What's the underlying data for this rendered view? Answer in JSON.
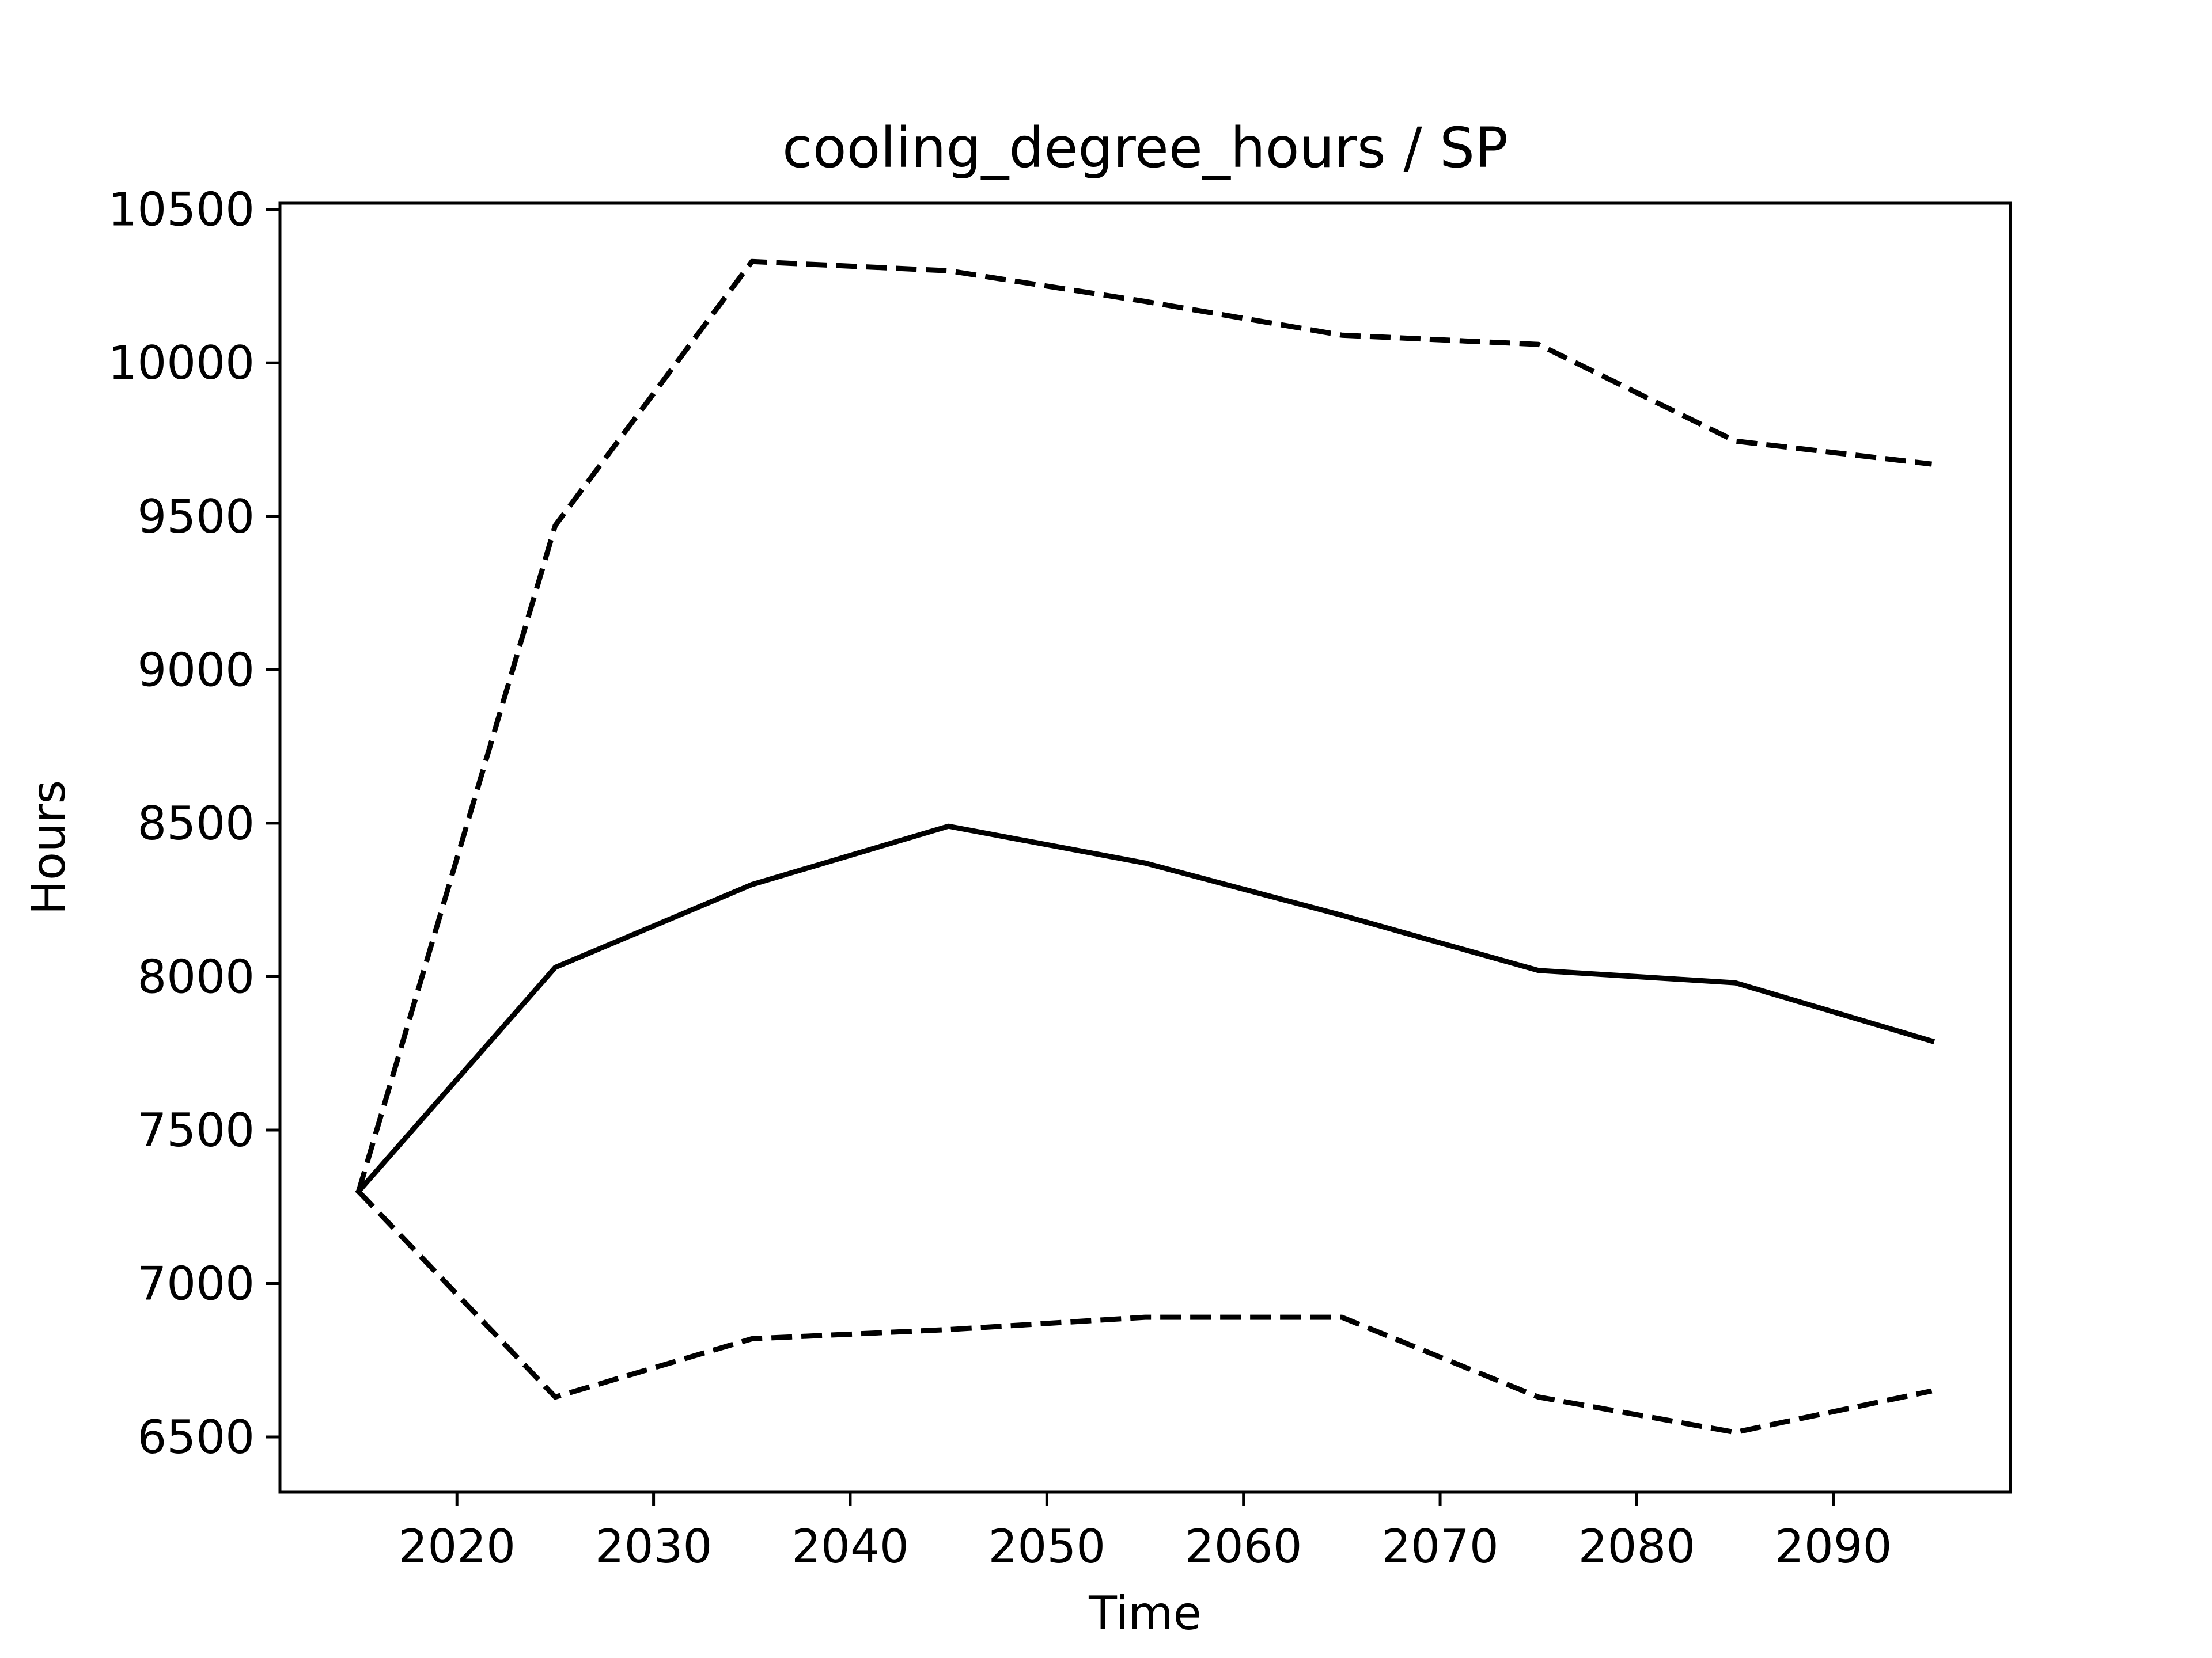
{
  "chart_data": {
    "type": "line",
    "title": "cooling_degree_hours / SP",
    "xlabel": "Time",
    "ylabel": "Hours",
    "xlim": [
      2011,
      2099
    ],
    "ylim": [
      6320,
      10520
    ],
    "x_ticks": [
      2020,
      2030,
      2040,
      2050,
      2060,
      2070,
      2080,
      2090
    ],
    "y_ticks": [
      6500,
      7000,
      7500,
      8000,
      8500,
      9000,
      9500,
      10000,
      10500
    ],
    "grid": false,
    "x": [
      2015,
      2025,
      2035,
      2045,
      2055,
      2065,
      2075,
      2085,
      2095
    ],
    "series": [
      {
        "style": "solid",
        "color": "#000000",
        "values": [
          7300,
          8030,
          8300,
          8490,
          8370,
          8200,
          8020,
          7980,
          7790
        ]
      },
      {
        "style": "dashed",
        "color": "#000000",
        "values": [
          7300,
          9470,
          10330,
          10300,
          10200,
          10090,
          10060,
          9745,
          9670
        ]
      },
      {
        "style": "dashed",
        "color": "#000000",
        "values": [
          7300,
          6630,
          6820,
          6850,
          6890,
          6890,
          6630,
          6515,
          6650
        ]
      }
    ]
  }
}
